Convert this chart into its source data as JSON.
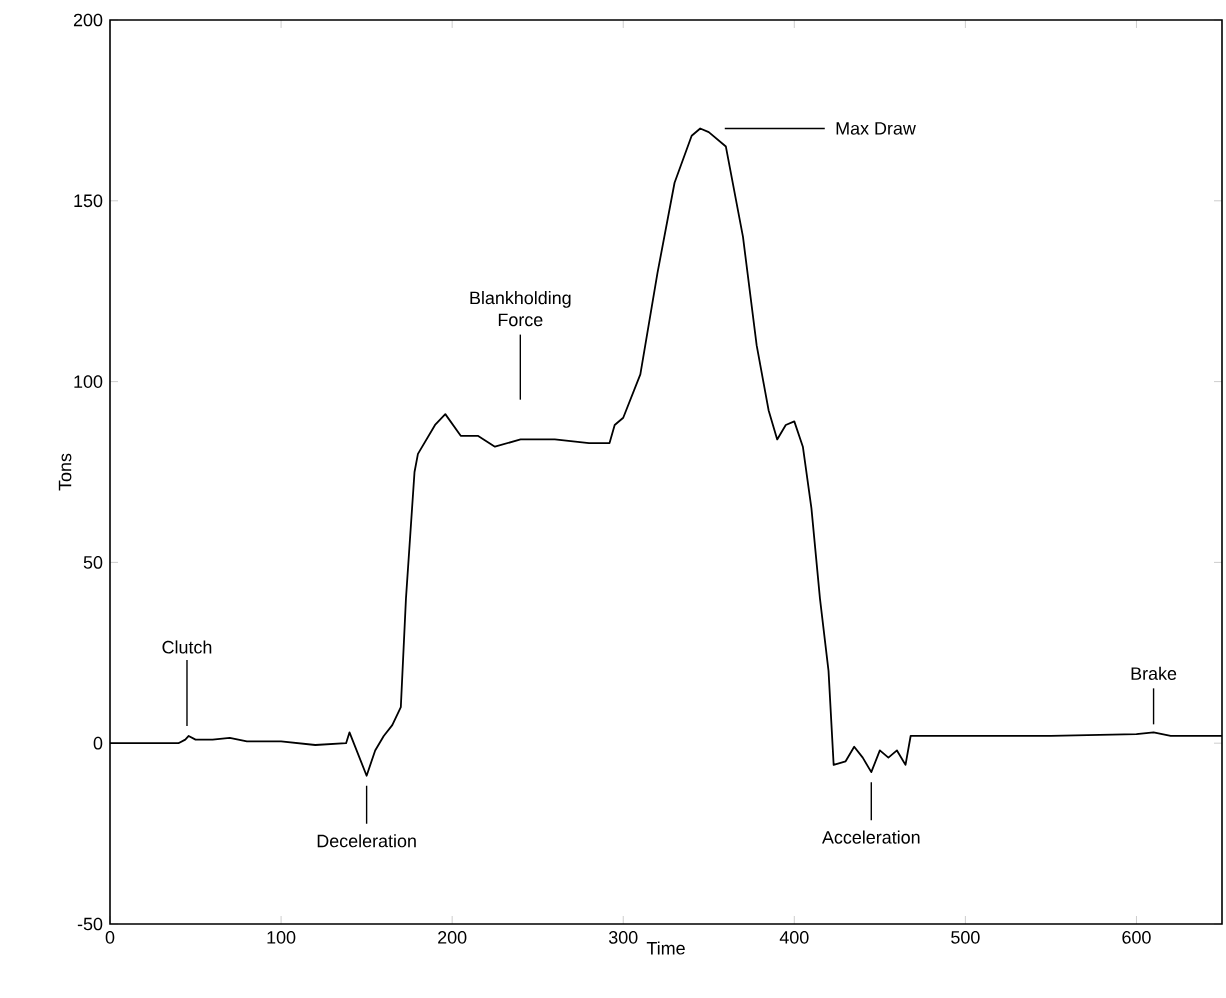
{
  "chart_data": {
    "type": "line",
    "xlabel": "Time",
    "ylabel": "Tons",
    "xlim": [
      0,
      650
    ],
    "ylim": [
      -50,
      200
    ],
    "xticks": [
      0,
      100,
      200,
      300,
      400,
      500,
      600
    ],
    "yticks": [
      -50,
      0,
      50,
      100,
      150,
      200
    ],
    "grid": false,
    "series": [
      {
        "color": "#000000",
        "x": [
          0,
          40,
          44,
          46,
          50,
          60,
          70,
          80,
          100,
          120,
          138,
          140,
          145,
          150,
          155,
          160,
          165,
          170,
          173,
          178,
          180,
          190,
          196,
          205,
          215,
          225,
          240,
          260,
          280,
          292,
          295,
          300,
          310,
          320,
          330,
          340,
          345,
          350,
          360,
          370,
          378,
          385,
          390,
          395,
          400,
          405,
          410,
          415,
          420,
          423,
          430,
          435,
          440,
          445,
          450,
          455,
          460,
          465,
          468,
          500,
          550,
          600,
          610,
          620,
          650
        ],
        "values": [
          0,
          0,
          1,
          2,
          1,
          1,
          1.5,
          0.5,
          0.5,
          -0.5,
          0,
          3,
          -3,
          -9,
          -2,
          2,
          5,
          10,
          40,
          75,
          80,
          88,
          91,
          85,
          85,
          82,
          84,
          84,
          83,
          83,
          88,
          90,
          102,
          130,
          155,
          168,
          170,
          169,
          165,
          140,
          110,
          92,
          84,
          88,
          89,
          82,
          65,
          40,
          20,
          -6,
          -5,
          -1,
          -4,
          -8,
          -2,
          -4,
          -2,
          -6,
          2,
          2,
          2,
          2.5,
          3,
          2,
          2
        ]
      }
    ],
    "annotations": [
      {
        "text": "Clutch",
        "x": 45,
        "y": 2
      },
      "Blankholding Force",
      {
        "text": "Max Draw",
        "x": 350,
        "y": 170
      },
      {
        "text": "Deceleration",
        "x": 150,
        "y": -9
      },
      {
        "text": "Acceleration",
        "x": 445,
        "y": -8
      },
      {
        "text": "Brake",
        "x": 610,
        "y": 3
      }
    ]
  }
}
